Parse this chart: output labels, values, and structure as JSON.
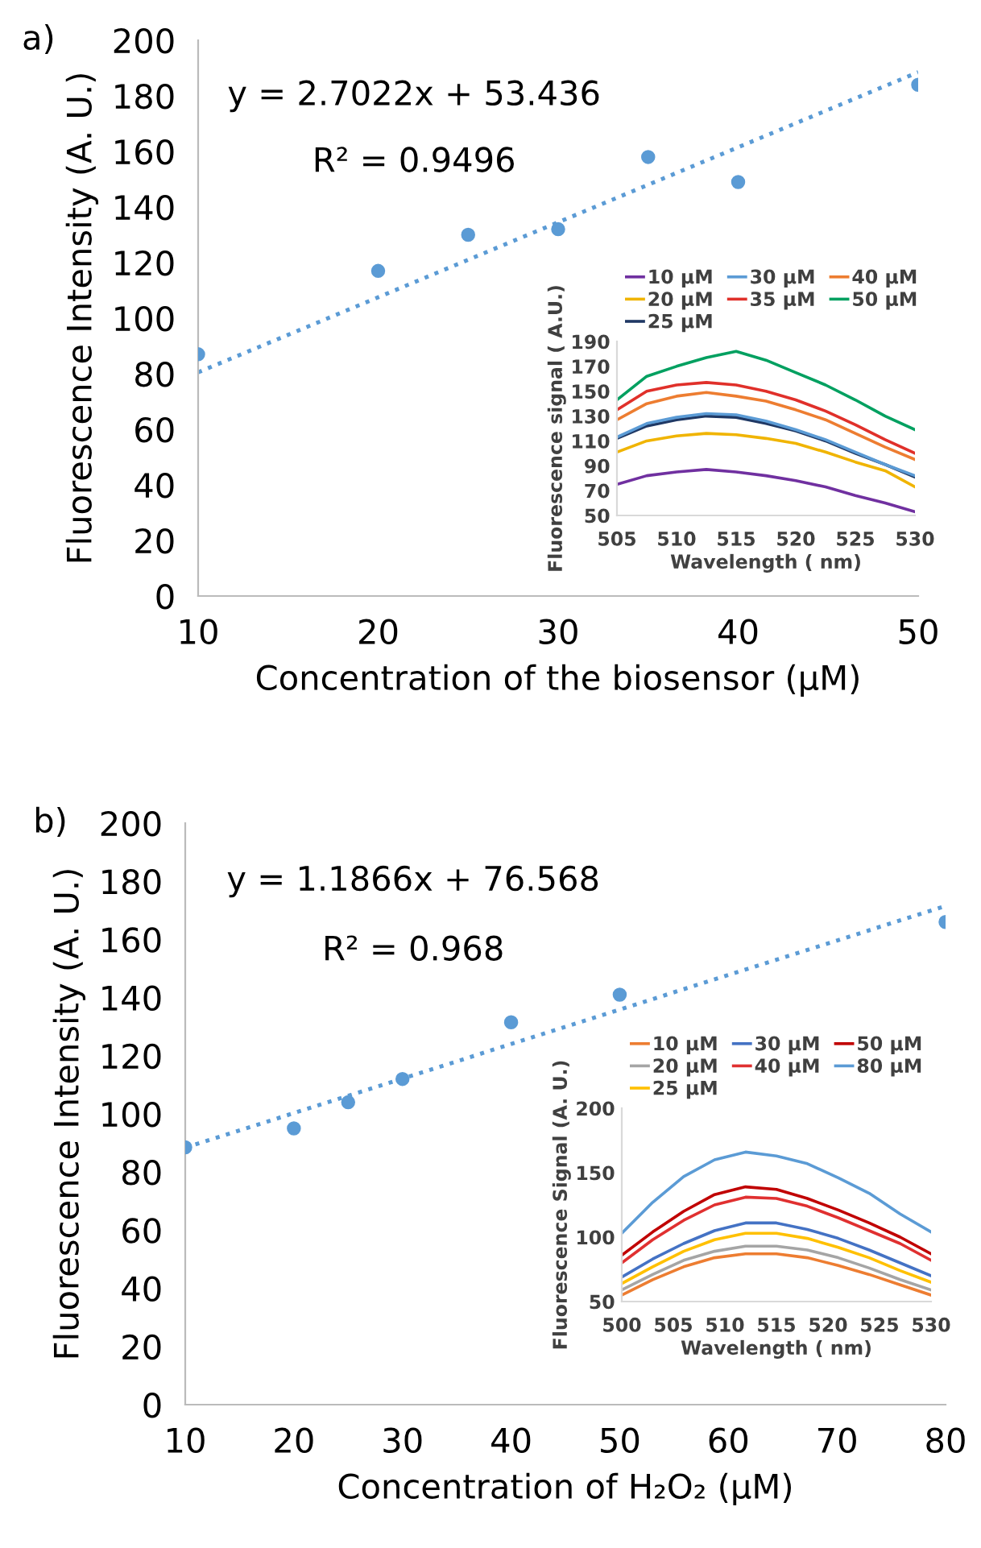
{
  "chart_data": [
    {
      "type": "scatter",
      "title": "a)",
      "xlabel": "Concentration of the biosensor (μM)",
      "ylabel": "Fluorescence Intensity (A. U.)",
      "xlim": [
        10,
        50
      ],
      "xticks": [
        10,
        20,
        30,
        40,
        50
      ],
      "ylim": [
        0,
        200
      ],
      "yticks": [
        0,
        20,
        40,
        60,
        80,
        100,
        120,
        140,
        160,
        180,
        200
      ],
      "grid": false,
      "legend": false,
      "annotations": [
        "y = 2.7022x + 53.436",
        "R² = 0.9496"
      ],
      "series": [
        {
          "type": "scatter",
          "color": "#5b9bd5",
          "marker": "circle",
          "x": [
            10,
            20,
            25,
            30,
            35,
            40,
            50
          ],
          "values": [
            87,
            117,
            130,
            132,
            158,
            149,
            184
          ]
        },
        {
          "type": "line",
          "color": "#5b9bd5",
          "line_style": "dotted",
          "marker": "none",
          "x": [
            10,
            50
          ],
          "values": [
            80.5,
            188.5
          ]
        }
      ]
    },
    {
      "type": "line",
      "xlabel": "Wavelength ( nm)",
      "ylabel": "Fluorescence signal ( A.U.)",
      "xlim": [
        505,
        530
      ],
      "xticks": [
        505,
        510,
        515,
        520,
        525,
        530
      ],
      "ylim": [
        50,
        190
      ],
      "yticks": [
        50,
        70,
        90,
        110,
        130,
        150,
        170,
        190
      ],
      "grid": false,
      "legend": "top",
      "x": [
        505,
        507.5,
        510,
        512.5,
        515,
        517.5,
        520,
        522.5,
        525,
        527.5,
        530
      ],
      "series": [
        {
          "name": "10 μM",
          "color": "#7030a0",
          "values": [
            75,
            82,
            85,
            87,
            85,
            82,
            78,
            73,
            66,
            60,
            53
          ]
        },
        {
          "name": "20 μM",
          "color": "#f0b400",
          "values": [
            101,
            110,
            114,
            116,
            115,
            112,
            108,
            101,
            93,
            86,
            73
          ]
        },
        {
          "name": "25 μM",
          "color": "#1f3864",
          "values": [
            112,
            122,
            127,
            130,
            129,
            124,
            118,
            110,
            100,
            91,
            81
          ]
        },
        {
          "name": "30 μM",
          "color": "#5b9bd5",
          "values": [
            113,
            124,
            129,
            132,
            131,
            126,
            119,
            111,
            101,
            91,
            82
          ]
        },
        {
          "name": "35 μM",
          "color": "#e0302a",
          "values": [
            135,
            150,
            155,
            157,
            155,
            150,
            143,
            134,
            123,
            111,
            100
          ]
        },
        {
          "name": "40 μM",
          "color": "#ed7d31",
          "values": [
            127,
            140,
            146,
            149,
            146,
            142,
            135,
            127,
            116,
            105,
            95
          ]
        },
        {
          "name": "50 μM",
          "color": "#00a060",
          "values": [
            143,
            162,
            170,
            177,
            182,
            175,
            165,
            155,
            143,
            130,
            119
          ]
        }
      ]
    },
    {
      "type": "scatter",
      "title": "b)",
      "xlabel": "Concentration of H₂O₂ (μM)",
      "ylabel": "Fluorescence Intensity (A. U.)",
      "xlim": [
        10,
        80
      ],
      "xticks": [
        10,
        20,
        30,
        40,
        50,
        60,
        70,
        80
      ],
      "ylim": [
        0,
        200
      ],
      "yticks": [
        0,
        20,
        40,
        60,
        80,
        100,
        120,
        140,
        160,
        180,
        200
      ],
      "grid": false,
      "legend": false,
      "annotations": [
        "y = 1.1866x + 76.568",
        "R² = 0.968"
      ],
      "series": [
        {
          "type": "scatter",
          "color": "#5b9bd5",
          "marker": "circle",
          "x": [
            10,
            20,
            25,
            30,
            40,
            50,
            80
          ],
          "values": [
            88.5,
            95,
            104,
            112,
            131.5,
            141,
            166
          ]
        },
        {
          "type": "line",
          "color": "#5b9bd5",
          "line_style": "dotted",
          "marker": "none",
          "x": [
            10,
            80
          ],
          "values": [
            88.4,
            171.5
          ]
        }
      ]
    },
    {
      "type": "line",
      "xlabel": "Wavelength ( nm)",
      "ylabel": "Fluorescence Signal (A. U.)",
      "xlim": [
        500,
        530
      ],
      "xticks": [
        500,
        505,
        510,
        515,
        520,
        525,
        530
      ],
      "ylim": [
        50,
        200
      ],
      "yticks": [
        50,
        100,
        150,
        200
      ],
      "grid": false,
      "legend": "top",
      "x": [
        500,
        503,
        506,
        509,
        512,
        515,
        518,
        521,
        524,
        527,
        530
      ],
      "series": [
        {
          "name": "10 μM",
          "color": "#ed7d31",
          "values": [
            55,
            67,
            77,
            84,
            87,
            87,
            84,
            78,
            71,
            63,
            55
          ]
        },
        {
          "name": "20 μM",
          "color": "#a5a5a5",
          "values": [
            59,
            71,
            82,
            89,
            93,
            93,
            90,
            84,
            76,
            67,
            59
          ]
        },
        {
          "name": "25 μM",
          "color": "#ffc000",
          "values": [
            64,
            77,
            89,
            98,
            103,
            103,
            99,
            92,
            84,
            74,
            65
          ]
        },
        {
          "name": "30 μM",
          "color": "#4472c4",
          "values": [
            69,
            83,
            95,
            105,
            111,
            111,
            106,
            99,
            90,
            80,
            70
          ]
        },
        {
          "name": "40 μM",
          "color": "#e03030",
          "values": [
            80,
            98,
            113,
            125,
            131,
            130,
            124,
            115,
            105,
            95,
            82
          ]
        },
        {
          "name": "50 μM",
          "color": "#c00000",
          "values": [
            86,
            104,
            120,
            133,
            139,
            137,
            130,
            121,
            111,
            100,
            87
          ]
        },
        {
          "name": "80 μM",
          "color": "#5b9bd5",
          "values": [
            103,
            127,
            147,
            160,
            166,
            163,
            157,
            146,
            134,
            118,
            104
          ]
        }
      ]
    }
  ]
}
